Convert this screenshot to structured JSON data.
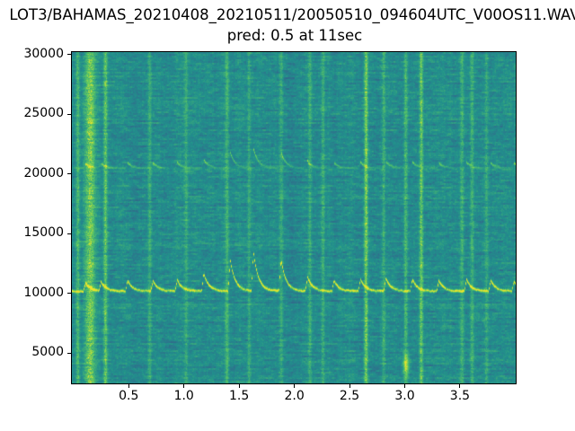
{
  "page_background": "#ffffff",
  "title": "LOT3/BAHAMAS_20210408_20210511/20050510_094604UTC_V00OS11.WAV",
  "subtitle": "pred: 0.5 at 11sec",
  "chart_data": {
    "type": "heatmap",
    "subtype": "spectrogram",
    "title": "LOT3/BAHAMAS_20210408_20210511/20050510_094604UTC_V00OS11.WAV",
    "subtitle": "pred: 0.5 at 11sec",
    "xlabel": "",
    "ylabel": "",
    "x_unit": "seconds",
    "y_unit": "Hz",
    "xlim": [
      -0.015,
      4.005
    ],
    "ylim": [
      2450,
      30190
    ],
    "grid": false,
    "legend": false,
    "x_ticks": {
      "values": [
        0.5,
        1.0,
        1.5,
        2.0,
        2.5,
        3.0,
        3.5
      ],
      "labels": [
        "0.5",
        "1.0",
        "1.5",
        "2.0",
        "2.5",
        "3.0",
        "3.5"
      ]
    },
    "y_ticks": {
      "values": [
        5000,
        10000,
        15000,
        20000,
        25000,
        30000
      ],
      "labels": [
        "5000",
        "10000",
        "15000",
        "20000",
        "25000",
        "30000"
      ]
    },
    "colormap": "viridis",
    "colormap_stops": [
      "#440154",
      "#3b528b",
      "#21918c",
      "#5ec962",
      "#fde725"
    ],
    "background_level": 0.48,
    "noise_seed": 1337,
    "features": {
      "description": "Dolphin whistle contour near 10.2 kHz with repeated upward chirps, its 2nd harmonic dash train near 20.5 kHz, broadband echolocation click lines, and a low-frequency energy smudge near 4 kHz at t=3.0s.",
      "whistle": {
        "base_hz": 10200,
        "brightness": 0.45,
        "spikes": [
          {
            "t": 0.11,
            "amp_hz": 700
          },
          {
            "t": 0.25,
            "amp_hz": 800
          },
          {
            "t": 0.49,
            "amp_hz": 900
          },
          {
            "t": 0.72,
            "amp_hz": 850
          },
          {
            "t": 0.94,
            "amp_hz": 950
          },
          {
            "t": 1.18,
            "amp_hz": 1500
          },
          {
            "t": 1.42,
            "amp_hz": 2600
          },
          {
            "t": 1.63,
            "amp_hz": 3300
          },
          {
            "t": 1.88,
            "amp_hz": 2700
          },
          {
            "t": 2.12,
            "amp_hz": 1200
          },
          {
            "t": 2.36,
            "amp_hz": 900
          },
          {
            "t": 2.6,
            "amp_hz": 1000
          },
          {
            "t": 2.83,
            "amp_hz": 1100
          },
          {
            "t": 3.07,
            "amp_hz": 1000
          },
          {
            "t": 3.31,
            "amp_hz": 900
          },
          {
            "t": 3.56,
            "amp_hz": 1000
          },
          {
            "t": 3.78,
            "amp_hz": 900
          },
          {
            "t": 3.99,
            "amp_hz": 850
          }
        ]
      },
      "harmonic": {
        "base_hz": 20500,
        "amp_ratio": 0.5,
        "brightness": 0.3
      },
      "clicks": [
        {
          "t": 0.04,
          "s": 0.2,
          "w": 0.012
        },
        {
          "t": 0.15,
          "s": 0.3,
          "w": 0.035
        },
        {
          "t": 0.29,
          "s": 0.25,
          "w": 0.012
        },
        {
          "t": 0.69,
          "s": 0.12,
          "w": 0.012
        },
        {
          "t": 1.02,
          "s": 0.12,
          "w": 0.012
        },
        {
          "t": 1.39,
          "s": 0.16,
          "w": 0.012
        },
        {
          "t": 1.59,
          "s": 0.12,
          "w": 0.012
        },
        {
          "t": 1.88,
          "s": 0.12,
          "w": 0.012
        },
        {
          "t": 2.14,
          "s": 0.14,
          "w": 0.012
        },
        {
          "t": 2.26,
          "s": 0.16,
          "w": 0.012
        },
        {
          "t": 2.65,
          "s": 0.3,
          "w": 0.012
        },
        {
          "t": 2.81,
          "s": 0.16,
          "w": 0.012
        },
        {
          "t": 3.01,
          "s": 0.18,
          "w": 0.012
        },
        {
          "t": 3.15,
          "s": 0.28,
          "w": 0.012
        },
        {
          "t": 3.52,
          "s": 0.15,
          "w": 0.012
        },
        {
          "t": 3.61,
          "s": 0.16,
          "w": 0.012
        },
        {
          "t": 3.74,
          "s": 0.12,
          "w": 0.012
        }
      ],
      "blob": {
        "t": 3.01,
        "hz": 4000,
        "s": 0.3
      }
    }
  }
}
